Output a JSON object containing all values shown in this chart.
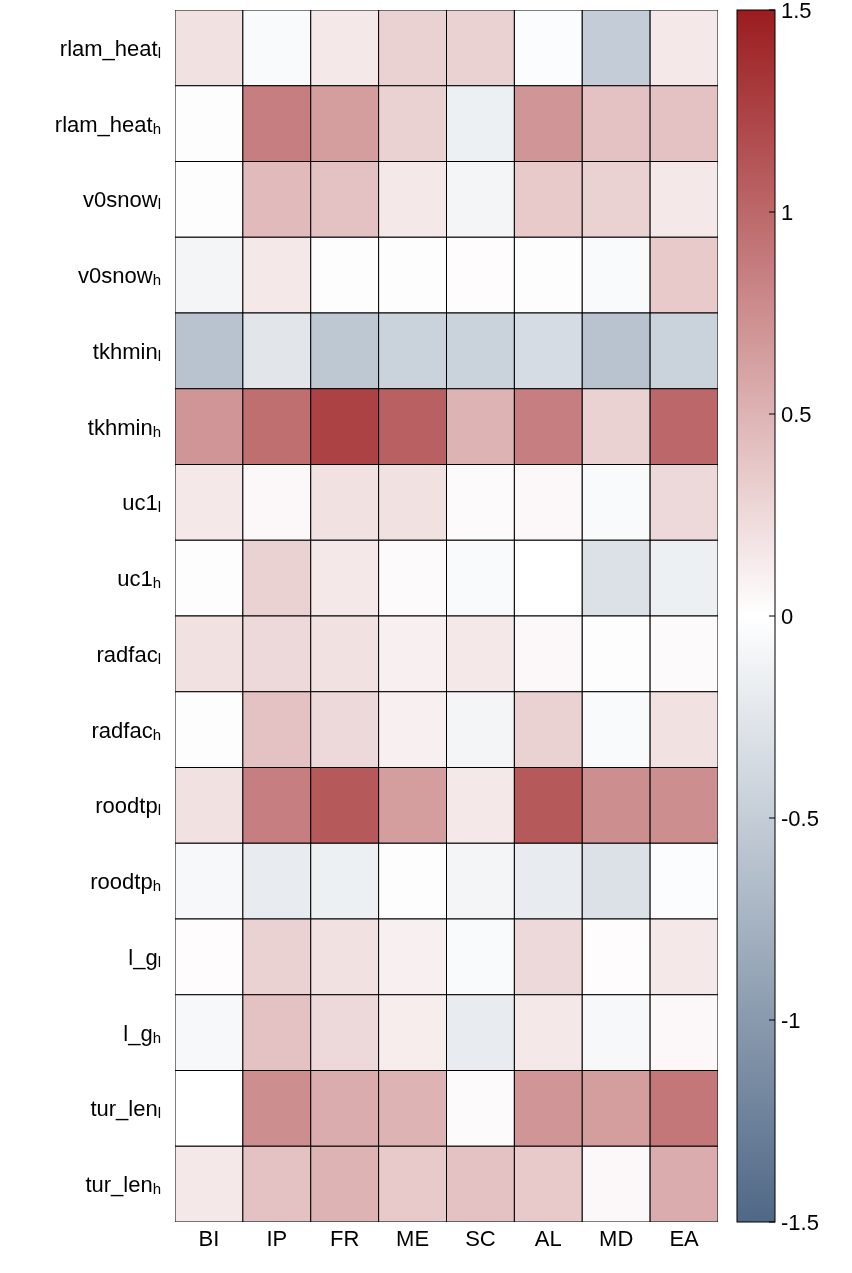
{
  "chart_data": {
    "type": "heatmap",
    "categories": [
      "BI",
      "IP",
      "FR",
      "ME",
      "SC",
      "AL",
      "MD",
      "EA"
    ],
    "y_categories": [
      "rlam_heat$_{l}$",
      "rlam_heat$_{h}$",
      "v0snow$_{l}$",
      "v0snow$_{h}$",
      "tkhmin$_{l}$",
      "tkhmin$_{h}$",
      "uc1$_{l}$",
      "uc1$_{h}$",
      "radfac$_{l}$",
      "radfac$_{h}$",
      "roodtp$_{l}$",
      "roodtp$_{h}$",
      "l_g$_{l}$",
      "l_g$_{h}$",
      "tur_len$_{l}$",
      "tur_len$_{h}$"
    ],
    "cells": [
      [
        0.2,
        -0.05,
        0.15,
        0.3,
        0.3,
        -0.03,
        -0.5,
        0.15
      ],
      [
        0.01,
        0.85,
        0.65,
        0.3,
        -0.15,
        0.7,
        0.4,
        0.4
      ],
      [
        0.01,
        0.45,
        0.4,
        0.15,
        -0.1,
        0.35,
        0.3,
        0.15
      ],
      [
        -0.1,
        0.15,
        0.01,
        0.01,
        0.02,
        0.01,
        -0.05,
        0.35
      ],
      [
        -0.6,
        -0.25,
        -0.55,
        -0.45,
        -0.45,
        -0.35,
        -0.6,
        -0.45
      ],
      [
        0.7,
        0.95,
        1.25,
        1.05,
        0.5,
        0.85,
        0.3,
        1.0
      ],
      [
        0.15,
        0.05,
        0.2,
        0.2,
        0.03,
        0.05,
        -0.05,
        0.25
      ],
      [
        -0.02,
        0.3,
        0.15,
        0.03,
        -0.05,
        0,
        -0.3,
        -0.15
      ],
      [
        0.2,
        0.25,
        0.2,
        0.1,
        0.15,
        0.05,
        -0.02,
        0.03
      ],
      [
        -0.02,
        0.4,
        0.25,
        0.1,
        -0.1,
        0.3,
        -0.05,
        0.2
      ],
      [
        0.2,
        0.85,
        1.1,
        0.65,
        0.15,
        1.1,
        0.75,
        0.75
      ],
      [
        -0.07,
        -0.2,
        -0.15,
        -0.02,
        -0.1,
        -0.2,
        -0.3,
        -0.03
      ],
      [
        0.02,
        0.3,
        0.2,
        0.1,
        -0.05,
        0.25,
        0.02,
        0.15
      ],
      [
        -0.07,
        0.4,
        0.25,
        0.12,
        -0.2,
        0.15,
        -0.07,
        0.05
      ],
      [
        0,
        0.75,
        0.55,
        0.5,
        0.03,
        0.7,
        0.65,
        0.9
      ],
      [
        0.15,
        0.4,
        0.5,
        0.35,
        0.4,
        0.35,
        0.05,
        0.55
      ]
    ],
    "clim": [
      -1.5,
      1.5
    ],
    "cticks": [
      -1.5,
      -1,
      -0.5,
      0,
      0.5,
      1,
      1.5
    ]
  }
}
